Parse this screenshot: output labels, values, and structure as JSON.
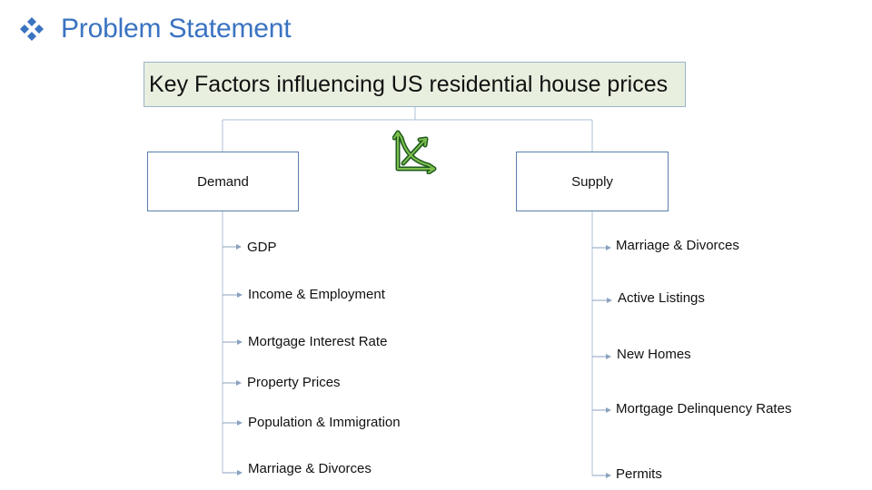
{
  "slide": {
    "title": "Problem Statement",
    "bullet_icon": "diamond-cluster-icon",
    "title_color": "#3a73c1"
  },
  "diagram": {
    "root": "Key Factors influencing US residential house prices",
    "center_icon": "supply-demand-curve-icon",
    "demand": {
      "label": "Demand",
      "items": [
        "GDP",
        "Income & Employment",
        "Mortgage Interest Rate",
        "Property Prices",
        "Population & Immigration",
        "Marriage & Divorces"
      ]
    },
    "supply": {
      "label": "Supply",
      "items": [
        "Marriage & Divorces",
        "Active Listings",
        "New Homes",
        "Mortgage Delinquency Rates",
        "Permits"
      ]
    }
  }
}
